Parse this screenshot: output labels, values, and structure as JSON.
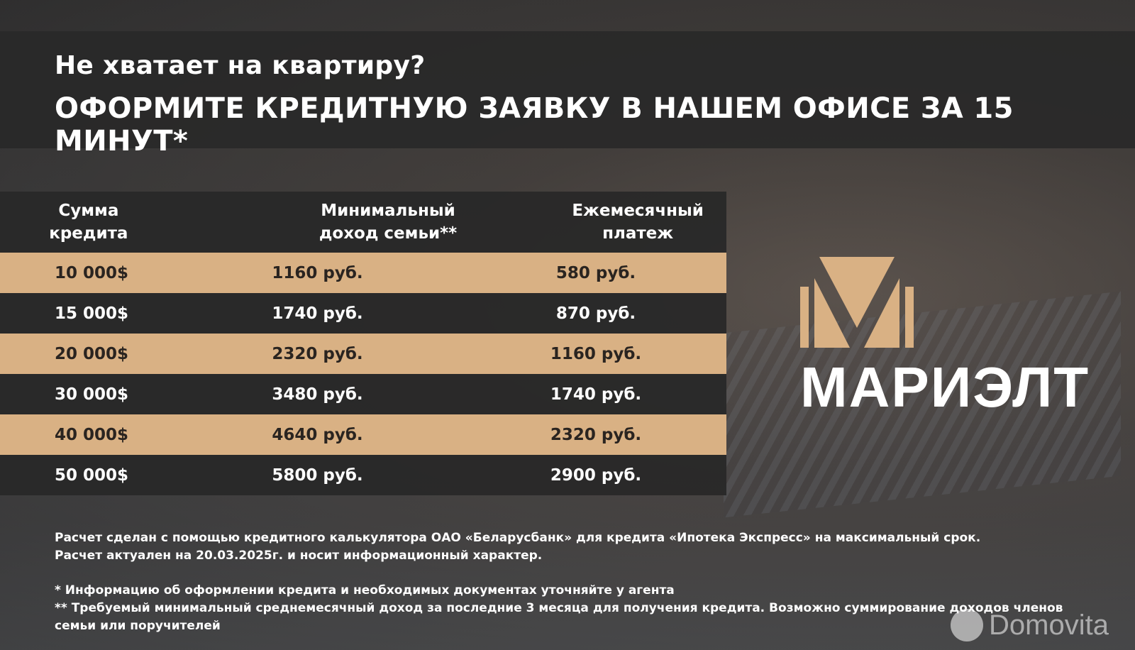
{
  "title": {
    "line1": "Не хватает на квартиру?",
    "line2": "ОФОРМИТЕ КРЕДИТНУЮ ЗАЯВКУ В НАШЕМ ОФИСЕ ЗА 15 МИНУТ*"
  },
  "table": {
    "headers": [
      [
        "Сумма",
        "кредита"
      ],
      [
        "Минимальный",
        "доход семьи**"
      ],
      [
        "Ежемесячный",
        "платеж"
      ]
    ],
    "rows": [
      [
        "10 000$",
        "1160 руб.",
        "580 руб."
      ],
      [
        "15 000$",
        "1740 руб.",
        "870 руб."
      ],
      [
        "20 000$",
        "2320 руб.",
        "1160 руб."
      ],
      [
        "30 000$",
        "3480 руб.",
        "1740 руб."
      ],
      [
        "40 000$",
        "4640 руб.",
        "2320 руб."
      ],
      [
        "50 000$",
        "5800 руб.",
        "2900 руб."
      ]
    ]
  },
  "brand": {
    "name": "МАРИЭЛТ",
    "accent": "#d9b184"
  },
  "notes": {
    "calc1": "Расчет сделан с помощью кредитного калькулятора ОАО «Беларусбанк» для кредита «Ипотека Экспресс» на максимальный срок.",
    "calc2": "Расчет актуален на 20.03.2025г. и носит информационный характер.",
    "fn1": "* Информацию об оформлении кредита и необходимых документах уточняйте у агента",
    "fn2": "** Требуемый минимальный среднемесячный доход за последние 3 месяца для получения кредита. Возможно суммирование доходов членов семьи или поручителей"
  },
  "watermark": "Domovita"
}
